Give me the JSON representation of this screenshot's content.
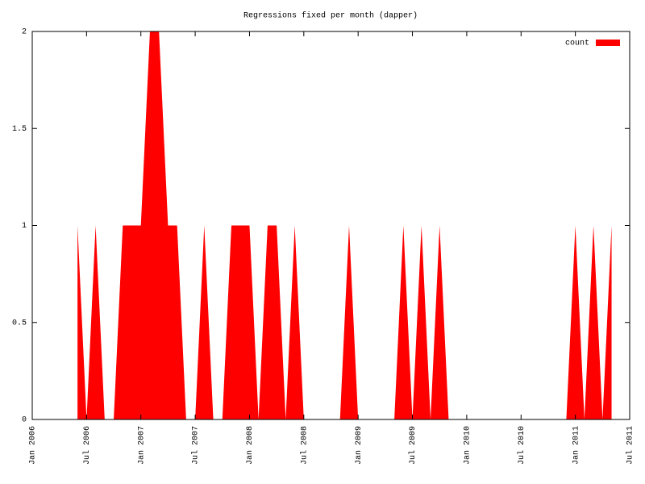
{
  "chart_data": {
    "type": "area",
    "title": "Regressions fixed per month (dapper)",
    "x": [
      "2006-06",
      "2006-07",
      "2006-08",
      "2006-09",
      "2006-10",
      "2006-11",
      "2006-12",
      "2007-01",
      "2007-02",
      "2007-03",
      "2007-04",
      "2007-05",
      "2007-06",
      "2007-07",
      "2007-08",
      "2007-09",
      "2007-10",
      "2007-11",
      "2007-12",
      "2008-01",
      "2008-02",
      "2008-03",
      "2008-04",
      "2008-05",
      "2008-06",
      "2008-07",
      "2008-08",
      "2008-09",
      "2008-10",
      "2008-11",
      "2008-12",
      "2009-01",
      "2009-02",
      "2009-03",
      "2009-04",
      "2009-05",
      "2009-06",
      "2009-07",
      "2009-08",
      "2009-09",
      "2009-10",
      "2009-11",
      "2009-12",
      "2010-01",
      "2010-02",
      "2010-03",
      "2010-04",
      "2010-05",
      "2010-06",
      "2010-07",
      "2010-08",
      "2010-09",
      "2010-10",
      "2010-11",
      "2010-12",
      "2011-01",
      "2011-02",
      "2011-03",
      "2011-04",
      "2011-05"
    ],
    "series": [
      {
        "name": "count",
        "color": "#ff0000",
        "values": [
          1,
          0,
          1,
          0,
          0,
          1,
          1,
          1,
          2,
          2,
          1,
          1,
          0,
          0,
          1,
          0,
          0,
          1,
          1,
          1,
          0,
          1,
          1,
          0,
          1,
          0,
          0,
          0,
          0,
          0,
          1,
          0,
          0,
          0,
          0,
          0,
          1,
          0,
          1,
          0,
          1,
          0,
          0,
          0,
          0,
          0,
          0,
          0,
          0,
          0,
          0,
          0,
          0,
          0,
          0,
          1,
          0,
          1,
          0,
          1
        ]
      }
    ],
    "xlim": [
      "2006-01",
      "2011-07"
    ],
    "xticks": [
      {
        "value": "2006-01",
        "label": "Jan 2006"
      },
      {
        "value": "2006-07",
        "label": "Jul 2006"
      },
      {
        "value": "2007-01",
        "label": "Jan 2007"
      },
      {
        "value": "2007-07",
        "label": "Jul 2007"
      },
      {
        "value": "2008-01",
        "label": "Jan 2008"
      },
      {
        "value": "2008-07",
        "label": "Jul 2008"
      },
      {
        "value": "2009-01",
        "label": "Jan 2009"
      },
      {
        "value": "2009-07",
        "label": "Jul 2009"
      },
      {
        "value": "2010-01",
        "label": "Jan 2010"
      },
      {
        "value": "2010-07",
        "label": "Jul 2010"
      },
      {
        "value": "2011-01",
        "label": "Jan 2011"
      },
      {
        "value": "2011-07",
        "label": "Jul 2011"
      }
    ],
    "ylim": [
      0,
      2
    ],
    "yticks": [
      0,
      0.5,
      1,
      1.5,
      2
    ],
    "legend": "top right"
  }
}
